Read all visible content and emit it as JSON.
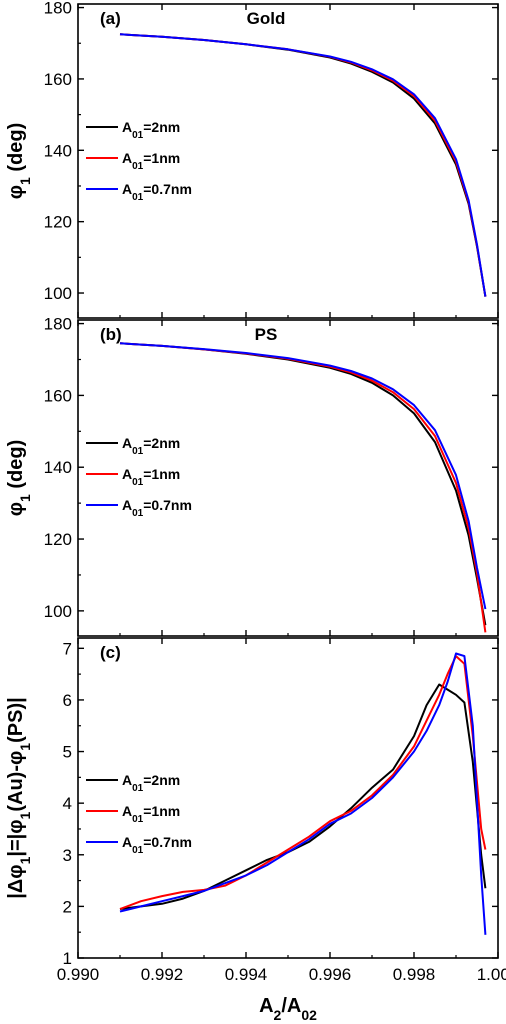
{
  "chart_data": [
    {
      "type": "line",
      "panel": "(a)",
      "title": "Gold",
      "ylabel": "φ1 (deg)",
      "xlim": [
        0.99,
        1.0
      ],
      "ylim": [
        93,
        181
      ],
      "yticks": [
        100,
        120,
        140,
        160,
        180
      ],
      "legend": "center-left",
      "series": [
        {
          "name": "A01=2nm",
          "color": "#000000",
          "x": [
            0.991,
            0.992,
            0.993,
            0.994,
            0.995,
            0.996,
            0.9965,
            0.997,
            0.9975,
            0.998,
            0.9985,
            0.999,
            0.9993,
            0.9995,
            0.9997
          ],
          "y": [
            172.5,
            171.8,
            170.9,
            169.7,
            168.2,
            166.0,
            164.3,
            162.0,
            159.0,
            154.5,
            147.5,
            136.0,
            125.0,
            113.0,
            99.0
          ]
        },
        {
          "name": "A01=1nm",
          "color": "#ff0000",
          "x": [
            0.991,
            0.992,
            0.993,
            0.994,
            0.995,
            0.996,
            0.9965,
            0.997,
            0.9975,
            0.998,
            0.9985,
            0.999,
            0.9993,
            0.9995,
            0.9997
          ],
          "y": [
            172.5,
            171.8,
            170.9,
            169.7,
            168.3,
            166.2,
            164.6,
            162.4,
            159.5,
            155.2,
            148.3,
            136.8,
            125.5,
            113.3,
            99.0
          ]
        },
        {
          "name": "A01=0.7nm",
          "color": "#0000ff",
          "x": [
            0.991,
            0.992,
            0.993,
            0.994,
            0.995,
            0.996,
            0.9965,
            0.997,
            0.9975,
            0.998,
            0.9985,
            0.999,
            0.9993,
            0.9995,
            0.9997
          ],
          "y": [
            172.5,
            171.8,
            170.9,
            169.7,
            168.3,
            166.3,
            164.8,
            162.7,
            159.9,
            155.7,
            149.0,
            137.5,
            126.0,
            113.6,
            99.0
          ]
        }
      ]
    },
    {
      "type": "line",
      "panel": "(b)",
      "title": "PS",
      "ylabel": "φ1 (deg)",
      "xlim": [
        0.99,
        1.0
      ],
      "ylim": [
        93,
        181
      ],
      "yticks": [
        100,
        120,
        140,
        160,
        180
      ],
      "legend": "center-left",
      "series": [
        {
          "name": "A01=2nm",
          "color": "#000000",
          "x": [
            0.991,
            0.992,
            0.993,
            0.994,
            0.995,
            0.996,
            0.9965,
            0.997,
            0.9975,
            0.998,
            0.9985,
            0.999,
            0.9993,
            0.9995,
            0.9997
          ],
          "y": [
            174.5,
            173.8,
            172.8,
            171.6,
            170.0,
            167.7,
            166.0,
            163.5,
            160.0,
            155.0,
            147.0,
            133.5,
            121.0,
            109.0,
            96.0
          ]
        },
        {
          "name": "A01=1nm",
          "color": "#ff0000",
          "x": [
            0.991,
            0.992,
            0.993,
            0.994,
            0.995,
            0.996,
            0.9965,
            0.997,
            0.9975,
            0.998,
            0.9985,
            0.999,
            0.9993,
            0.9995,
            0.9997
          ],
          "y": [
            174.5,
            173.8,
            172.8,
            171.7,
            170.2,
            168.0,
            166.4,
            164.1,
            160.9,
            156.2,
            148.7,
            135.6,
            123.0,
            110.5,
            94.0
          ]
        },
        {
          "name": "A01=0.7nm",
          "color": "#0000ff",
          "x": [
            0.991,
            0.992,
            0.993,
            0.994,
            0.995,
            0.996,
            0.9965,
            0.997,
            0.9975,
            0.998,
            0.9985,
            0.999,
            0.9993,
            0.9995,
            0.9997
          ],
          "y": [
            174.5,
            173.8,
            172.9,
            171.8,
            170.4,
            168.3,
            166.8,
            164.7,
            161.7,
            157.3,
            150.3,
            137.8,
            125.0,
            112.0,
            100.5
          ]
        }
      ]
    },
    {
      "type": "line",
      "panel": "(c)",
      "title": "",
      "ylabel": "|Δφ1|=|φ1(Au)-φ1(PS)|",
      "xlabel": "A2/A02",
      "xlim": [
        0.99,
        1.0
      ],
      "ylim": [
        1,
        7.2
      ],
      "yticks": [
        1,
        2,
        3,
        4,
        5,
        6,
        7
      ],
      "xticks": [
        "0.990",
        "0.992",
        "0.994",
        "0.996",
        "0.998",
        "1.000"
      ],
      "legend": "center-left",
      "series": [
        {
          "name": "A01=2nm",
          "color": "#000000",
          "x": [
            0.991,
            0.9915,
            0.992,
            0.9925,
            0.993,
            0.9935,
            0.994,
            0.9945,
            0.995,
            0.9955,
            0.996,
            0.9965,
            0.997,
            0.9975,
            0.998,
            0.9983,
            0.9986,
            0.9988,
            0.999,
            0.9992,
            0.9994,
            0.9996,
            0.9997
          ],
          "y": [
            1.95,
            2.0,
            2.05,
            2.15,
            2.3,
            2.5,
            2.7,
            2.9,
            3.05,
            3.25,
            3.55,
            3.9,
            4.3,
            4.65,
            5.3,
            5.9,
            6.3,
            6.2,
            6.1,
            5.95,
            4.8,
            3.0,
            2.35
          ]
        },
        {
          "name": "A01=1nm",
          "color": "#ff0000",
          "x": [
            0.991,
            0.9915,
            0.992,
            0.9925,
            0.993,
            0.9935,
            0.994,
            0.9945,
            0.995,
            0.9955,
            0.996,
            0.9965,
            0.997,
            0.9975,
            0.998,
            0.9983,
            0.9986,
            0.9988,
            0.999,
            0.9992,
            0.9994,
            0.9996,
            0.9997
          ],
          "y": [
            1.95,
            2.1,
            2.2,
            2.28,
            2.32,
            2.4,
            2.6,
            2.85,
            3.1,
            3.35,
            3.65,
            3.85,
            4.15,
            4.55,
            5.1,
            5.6,
            6.1,
            6.5,
            6.85,
            6.7,
            5.3,
            3.5,
            3.1
          ]
        },
        {
          "name": "A01=0.7nm",
          "color": "#0000ff",
          "x": [
            0.991,
            0.9915,
            0.992,
            0.9925,
            0.993,
            0.9935,
            0.994,
            0.9945,
            0.995,
            0.9955,
            0.996,
            0.9965,
            0.997,
            0.9975,
            0.998,
            0.9983,
            0.9986,
            0.9988,
            0.999,
            0.9992,
            0.9994,
            0.9996,
            0.9997
          ],
          "y": [
            1.9,
            2.0,
            2.1,
            2.2,
            2.3,
            2.45,
            2.6,
            2.8,
            3.05,
            3.3,
            3.6,
            3.8,
            4.1,
            4.5,
            5.0,
            5.4,
            5.9,
            6.35,
            6.9,
            6.85,
            5.5,
            2.6,
            1.45
          ]
        }
      ]
    }
  ]
}
